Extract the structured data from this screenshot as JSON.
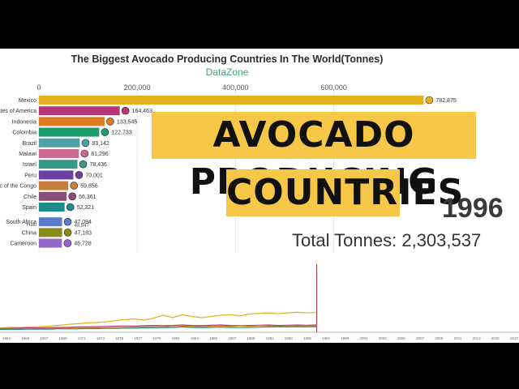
{
  "title": "The Biggest Avocado Producing Countries In The World(Tonnes)",
  "subtitle": "DataZone",
  "banner": {
    "line1": "AVOCADO PRODUCING",
    "line2": "COUNTRIES"
  },
  "year": "1996",
  "total_label": "Total Tonnes: 2,303,537",
  "chart_data": [
    {
      "type": "bar",
      "orientation": "horizontal",
      "title": "The Biggest Avocado Producing Countries In The World(Tonnes)",
      "subtitle": "DataZone",
      "xlim": [
        0,
        850000
      ],
      "x_ticks": [
        "0",
        "200,000",
        "400,000",
        "600,000"
      ],
      "categories": [
        "Mexico",
        "United States of America",
        "Indonesia",
        "Colombia",
        "Brazil",
        "Malawi",
        "Israel",
        "Peru",
        "Democratic Republic of the Congo",
        "Chile",
        "Spain",
        "South Africa",
        "China",
        "Cameroon"
      ],
      "category_labels_shown": [
        "Mexico",
        "States of America",
        "Indonesia",
        "Colombia",
        "Brazil",
        "Malawi",
        "Israel",
        "Peru",
        "blic of the Congo",
        "Chile",
        "Spain",
        "South Africa",
        "China",
        "Cameroon"
      ],
      "values": [
        782875,
        164463,
        133545,
        122733,
        83142,
        81296,
        78436,
        70001,
        59856,
        56361,
        52321,
        47094,
        47183,
        46728
      ],
      "value_labels": [
        "782,875",
        "164,463",
        "133,545",
        "122,733",
        "83,142",
        "81,296",
        "78,436",
        "70,001",
        "59,856",
        "56,361",
        "52,321",
        "47,094",
        "47,183",
        "46,728"
      ],
      "colors": [
        "#e5b21d",
        "#b8357c",
        "#e07b25",
        "#1f9c6b",
        "#4aa3a8",
        "#c96a8e",
        "#3a9a89",
        "#6b3fa0",
        "#c67d3c",
        "#8e4b7c",
        "#1e8c8c",
        "#5b7bc9",
        "#8a8a1c",
        "#9466c9"
      ],
      "overlapping_label": "Haiti",
      "overlapping_value_label": "48,847"
    },
    {
      "type": "line",
      "title": "",
      "x_ticks": [
        "1963",
        "1965",
        "1967",
        "1969",
        "1971",
        "1973",
        "1975",
        "1977",
        "1979",
        "1981",
        "1983",
        "1985",
        "1987",
        "1989",
        "1991",
        "1993",
        "1995",
        "1997",
        "1999",
        "2001",
        "2003",
        "2005",
        "2007",
        "2009",
        "2011",
        "2013",
        "2015",
        "2017"
      ],
      "series": [
        {
          "values_approx": [
            0.08,
            0.1,
            0.1,
            0.12,
            0.13,
            0.15,
            0.18,
            0.22,
            0.25,
            0.28,
            0.3,
            0.33,
            0.38,
            0.42,
            0.45,
            0.4,
            0.48,
            0.6,
            0.5,
            0.62,
            0.55,
            0.5,
            0.55,
            0.6,
            0.62,
            0.58,
            0.65,
            0.68,
            0.7,
            0.66,
            0.7,
            0.72,
            0.7,
            0.72
          ],
          "color": "#e5b21d"
        },
        {
          "values_approx": [
            0.05,
            0.06,
            0.07,
            0.08,
            0.08,
            0.09,
            0.1,
            0.1,
            0.12,
            0.12,
            0.13,
            0.14,
            0.15,
            0.16,
            0.15,
            0.17,
            0.18,
            0.17,
            0.18,
            0.2,
            0.18,
            0.17,
            0.19,
            0.2,
            0.18,
            0.17,
            0.18,
            0.19,
            0.2,
            0.18,
            0.19,
            0.2,
            0.19,
            0.2
          ],
          "color": "#b8357c"
        },
        {
          "values_approx": [
            0.03,
            0.03,
            0.04,
            0.04,
            0.05,
            0.05,
            0.06,
            0.06,
            0.07,
            0.07,
            0.08,
            0.08,
            0.09,
            0.1,
            0.1,
            0.12,
            0.13,
            0.14,
            0.12,
            0.15,
            0.14,
            0.13,
            0.15,
            0.16,
            0.14,
            0.16,
            0.15,
            0.17,
            0.16,
            0.15,
            0.16,
            0.17,
            0.16,
            0.17
          ],
          "color": "#e07b25"
        },
        {
          "values_approx": [
            0.02,
            0.02,
            0.02,
            0.03,
            0.03,
            0.03,
            0.04,
            0.04,
            0.04,
            0.05,
            0.05,
            0.06,
            0.06,
            0.07,
            0.07,
            0.08,
            0.08,
            0.09,
            0.1,
            0.12,
            0.1,
            0.09,
            0.1,
            0.11,
            0.1,
            0.09,
            0.1,
            0.11,
            0.12,
            0.13,
            0.12,
            0.13,
            0.12,
            0.13
          ],
          "color": "#1f9c6b"
        }
      ],
      "current_year": "1996"
    }
  ]
}
